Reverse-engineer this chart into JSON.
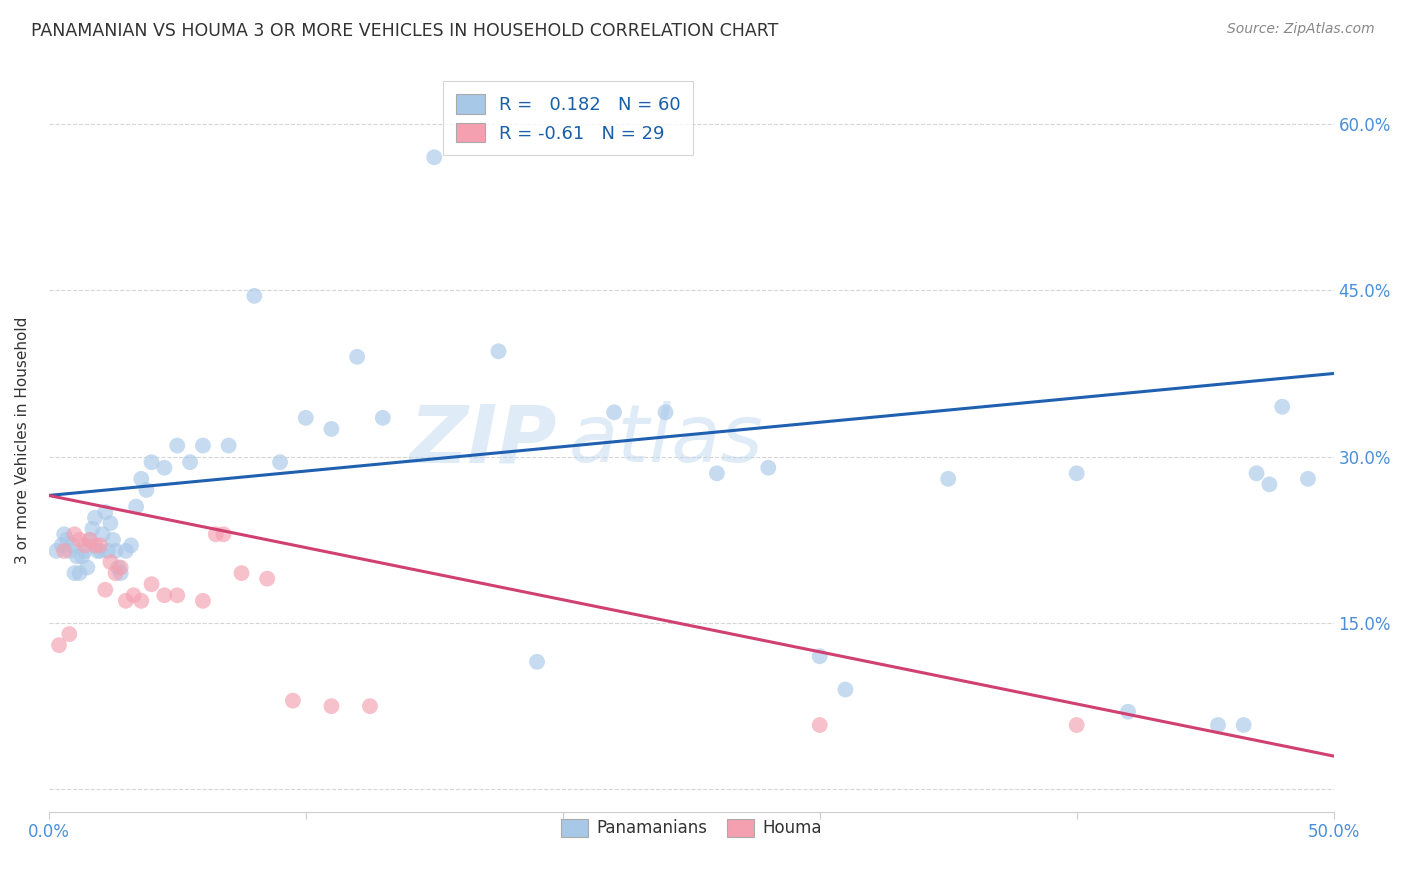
{
  "title": "PANAMANIAN VS HOUMA 3 OR MORE VEHICLES IN HOUSEHOLD CORRELATION CHART",
  "source": "Source: ZipAtlas.com",
  "ylabel": "3 or more Vehicles in Household",
  "watermark_line1": "ZIP",
  "watermark_line2": "atlas",
  "xlim": [
    0.0,
    0.5
  ],
  "ylim": [
    -0.02,
    0.65
  ],
  "blue_R": 0.182,
  "blue_N": 60,
  "pink_R": -0.61,
  "pink_N": 29,
  "blue_color": "#a8c8e8",
  "pink_color": "#f4a0b0",
  "blue_line_color": "#2060b0",
  "pink_line_color": "#d04070",
  "grid_color": "#cccccc",
  "background_color": "#ffffff",
  "blue_line_x0": 0.0,
  "blue_line_y0": 0.265,
  "blue_line_x1": 0.5,
  "blue_line_y1": 0.375,
  "pink_line_x0": 0.0,
  "pink_line_y0": 0.265,
  "pink_line_x1": 0.5,
  "pink_line_y1": 0.03,
  "panamanian_x": [
    0.003,
    0.005,
    0.006,
    0.007,
    0.008,
    0.009,
    0.01,
    0.011,
    0.012,
    0.013,
    0.014,
    0.015,
    0.016,
    0.017,
    0.018,
    0.019,
    0.02,
    0.021,
    0.022,
    0.023,
    0.024,
    0.025,
    0.026,
    0.027,
    0.028,
    0.03,
    0.032,
    0.034,
    0.036,
    0.038,
    0.04,
    0.045,
    0.05,
    0.055,
    0.06,
    0.07,
    0.08,
    0.09,
    0.1,
    0.11,
    0.12,
    0.13,
    0.15,
    0.175,
    0.19,
    0.22,
    0.24,
    0.26,
    0.28,
    0.3,
    0.31,
    0.35,
    0.4,
    0.42,
    0.455,
    0.465,
    0.47,
    0.475,
    0.48,
    0.49
  ],
  "panamanian_y": [
    0.215,
    0.22,
    0.23,
    0.225,
    0.215,
    0.22,
    0.195,
    0.21,
    0.195,
    0.21,
    0.215,
    0.2,
    0.225,
    0.235,
    0.245,
    0.215,
    0.215,
    0.23,
    0.25,
    0.215,
    0.24,
    0.225,
    0.215,
    0.2,
    0.195,
    0.215,
    0.22,
    0.255,
    0.28,
    0.27,
    0.295,
    0.29,
    0.31,
    0.295,
    0.31,
    0.31,
    0.445,
    0.295,
    0.335,
    0.325,
    0.39,
    0.335,
    0.57,
    0.395,
    0.115,
    0.34,
    0.34,
    0.285,
    0.29,
    0.12,
    0.09,
    0.28,
    0.285,
    0.07,
    0.058,
    0.058,
    0.285,
    0.275,
    0.345,
    0.28
  ],
  "houma_x": [
    0.004,
    0.006,
    0.008,
    0.01,
    0.012,
    0.014,
    0.016,
    0.018,
    0.02,
    0.022,
    0.024,
    0.026,
    0.028,
    0.03,
    0.033,
    0.036,
    0.04,
    0.045,
    0.05,
    0.06,
    0.065,
    0.068,
    0.075,
    0.085,
    0.095,
    0.11,
    0.125,
    0.3,
    0.4
  ],
  "houma_y": [
    0.13,
    0.215,
    0.14,
    0.23,
    0.225,
    0.22,
    0.225,
    0.22,
    0.22,
    0.18,
    0.205,
    0.195,
    0.2,
    0.17,
    0.175,
    0.17,
    0.185,
    0.175,
    0.175,
    0.17,
    0.23,
    0.23,
    0.195,
    0.19,
    0.08,
    0.075,
    0.075,
    0.058,
    0.058
  ]
}
